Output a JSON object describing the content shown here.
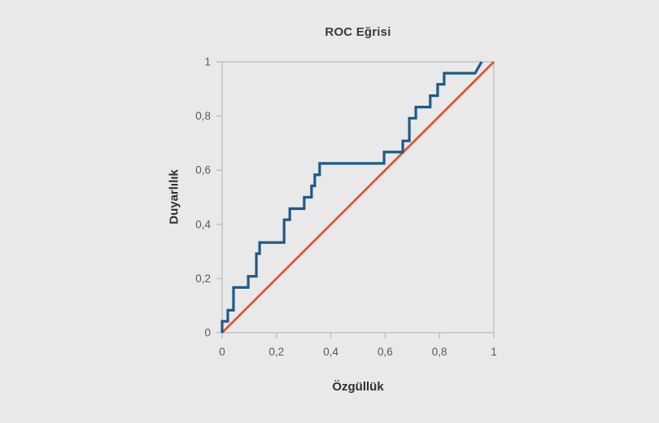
{
  "chart_data": {
    "type": "line",
    "title": "ROC Eğrisi",
    "xlabel": "Özgüllük",
    "ylabel": "Duyarlılık",
    "xlim": [
      0,
      1
    ],
    "ylim": [
      0,
      1
    ],
    "grid": false,
    "legend": false,
    "x_ticks": {
      "values": [
        0,
        0.2,
        0.4,
        0.6,
        0.8,
        1
      ],
      "labels": [
        "0",
        "0,2",
        "0,4",
        "0,6",
        "0,8",
        "1"
      ]
    },
    "y_ticks": {
      "values": [
        0,
        0.2,
        0.4,
        0.6,
        0.8,
        1
      ],
      "labels": [
        "0",
        "0,2",
        "0,4",
        "0,6",
        "0,8",
        "1"
      ]
    },
    "series": [
      {
        "name": "roc_curve",
        "line_style": "step",
        "color": "#1f5a87",
        "stroke_width": 3.2,
        "points": [
          [
            0,
            0
          ],
          [
            0,
            0.042
          ],
          [
            0.021,
            0.042
          ],
          [
            0.021,
            0.083
          ],
          [
            0.042,
            0.083
          ],
          [
            0.042,
            0.167
          ],
          [
            0.096,
            0.167
          ],
          [
            0.096,
            0.208
          ],
          [
            0.126,
            0.208
          ],
          [
            0.126,
            0.292
          ],
          [
            0.138,
            0.292
          ],
          [
            0.138,
            0.333
          ],
          [
            0.228,
            0.333
          ],
          [
            0.228,
            0.417
          ],
          [
            0.249,
            0.417
          ],
          [
            0.249,
            0.458
          ],
          [
            0.302,
            0.458
          ],
          [
            0.302,
            0.5
          ],
          [
            0.329,
            0.5
          ],
          [
            0.329,
            0.542
          ],
          [
            0.341,
            0.542
          ],
          [
            0.341,
            0.583
          ],
          [
            0.359,
            0.583
          ],
          [
            0.359,
            0.625
          ],
          [
            0.596,
            0.625
          ],
          [
            0.596,
            0.667
          ],
          [
            0.665,
            0.667
          ],
          [
            0.665,
            0.708
          ],
          [
            0.689,
            0.708
          ],
          [
            0.689,
            0.792
          ],
          [
            0.713,
            0.792
          ],
          [
            0.713,
            0.833
          ],
          [
            0.766,
            0.833
          ],
          [
            0.766,
            0.875
          ],
          [
            0.793,
            0.875
          ],
          [
            0.793,
            0.917
          ],
          [
            0.817,
            0.917
          ],
          [
            0.817,
            0.958
          ],
          [
            0.931,
            0.958
          ],
          [
            0.955,
            1
          ]
        ]
      },
      {
        "name": "reference_diagonal",
        "line_style": "straight",
        "color": "#e8502a",
        "stroke_width": 2.7,
        "points": [
          [
            0,
            0
          ],
          [
            1,
            1
          ]
        ]
      }
    ],
    "style": {
      "background": "#e9e9e9",
      "frame_color": "#bcbcbc",
      "tick_color": "#bcbcbc",
      "tick_label_color": "#595959",
      "title_color": "#3a3a3a",
      "axis_label_color": "#303030"
    }
  }
}
